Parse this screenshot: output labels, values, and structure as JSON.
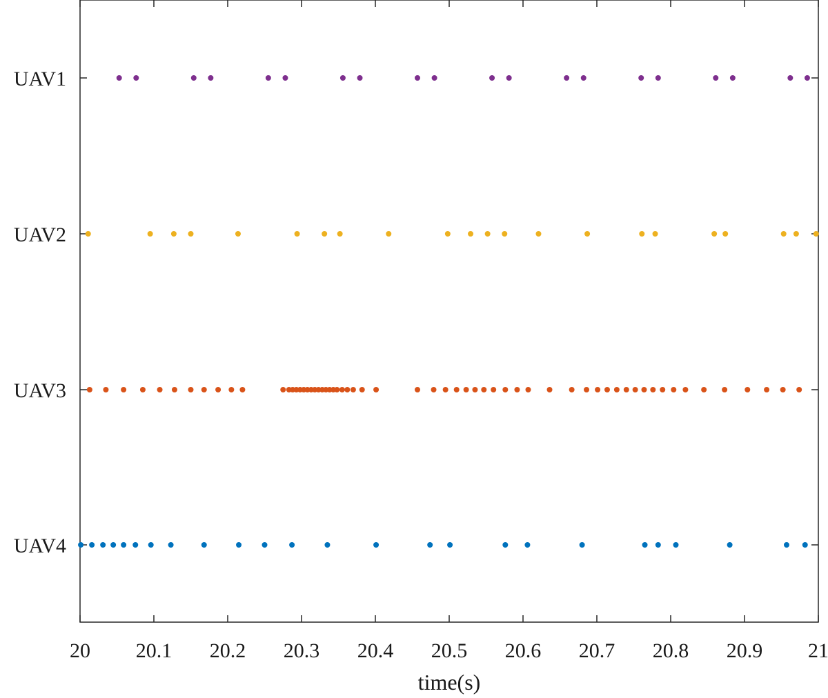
{
  "chart_data": {
    "type": "scatter",
    "title": "",
    "xlabel": "time(s)",
    "ylabel": "",
    "xlim": [
      20,
      21
    ],
    "x_ticks": [
      20,
      20.1,
      20.2,
      20.3,
      20.4,
      20.5,
      20.6,
      20.7,
      20.8,
      20.9,
      21
    ],
    "x_tick_labels": [
      "20",
      "20.1",
      "20.2",
      "20.3",
      "20.4",
      "20.5",
      "20.6",
      "20.7",
      "20.8",
      "20.9",
      "21"
    ],
    "categories": [
      "UAV1",
      "UAV2",
      "UAV3",
      "UAV4"
    ],
    "grid": false,
    "series": [
      {
        "category": "UAV1",
        "color": "#7E2F8E",
        "x": [
          20.053,
          20.076,
          20.154,
          20.177,
          20.255,
          20.278,
          20.356,
          20.379,
          20.457,
          20.48,
          20.558,
          20.581,
          20.659,
          20.682,
          20.76,
          20.783,
          20.861,
          20.884,
          20.962,
          20.985
        ]
      },
      {
        "category": "UAV2",
        "color": "#EDB120",
        "x": [
          20.011,
          20.095,
          20.127,
          20.15,
          20.214,
          20.294,
          20.331,
          20.352,
          20.418,
          20.498,
          20.529,
          20.552,
          20.575,
          20.621,
          20.687,
          20.761,
          20.779,
          20.859,
          20.874,
          20.953,
          20.97,
          20.997
        ]
      },
      {
        "category": "UAV3",
        "color": "#D95319",
        "x": [
          20.013,
          20.035,
          20.059,
          20.085,
          20.108,
          20.128,
          20.15,
          20.168,
          20.187,
          20.205,
          20.22,
          20.275,
          20.283,
          20.288,
          20.293,
          20.298,
          20.303,
          20.308,
          20.313,
          20.318,
          20.323,
          20.328,
          20.333,
          20.338,
          20.343,
          20.348,
          20.355,
          20.362,
          20.37,
          20.382,
          20.401,
          20.457,
          20.479,
          20.495,
          20.51,
          20.523,
          20.535,
          20.547,
          20.56,
          20.576,
          20.592,
          20.607,
          20.636,
          20.666,
          20.686,
          20.701,
          20.714,
          20.727,
          20.74,
          20.752,
          20.764,
          20.776,
          20.789,
          20.804,
          20.82,
          20.845,
          20.873,
          20.904,
          20.93,
          20.952,
          20.974
        ]
      },
      {
        "category": "UAV4",
        "color": "#0072BD",
        "x": [
          20.001,
          20.016,
          20.031,
          20.045,
          20.059,
          20.075,
          20.096,
          20.123,
          20.168,
          20.215,
          20.25,
          20.287,
          20.335,
          20.401,
          20.474,
          20.501,
          20.576,
          20.606,
          20.68,
          20.765,
          20.783,
          20.807,
          20.88,
          20.957,
          20.982
        ]
      }
    ]
  }
}
